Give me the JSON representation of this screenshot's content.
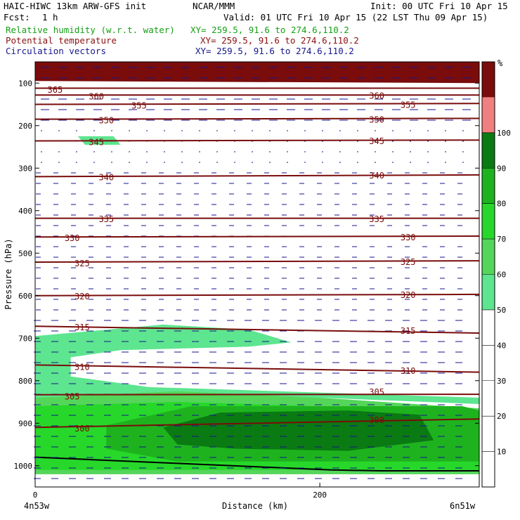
{
  "header": {
    "model": "HAIC-HIWC 13km ARW-GFS init",
    "org": "NCAR/MMM",
    "init": "Init: 00 UTC Fri 10 Apr 15",
    "fcst_label": "Fcst:",
    "fcst_value": "1 h",
    "valid": "Valid: 01 UTC Fri 10 Apr 15 (22 LST Thu 09 Apr 15)",
    "fields": [
      {
        "name": "Relative humidity (w.r.t. water)",
        "xy": "XY= 259.5, 91.6 to 274.6,110.2",
        "color": "#16a016"
      },
      {
        "name": "Potential temperature",
        "xy": "XY= 259.5, 91.6 to 274.6,110.2",
        "color": "#8c1010"
      },
      {
        "name": "Circulation vectors",
        "xy": "XY= 259.5, 91.6 to 274.6,110.2",
        "color": "#16168c"
      }
    ]
  },
  "chart_data": {
    "type": "cross-section",
    "xlabel": "Distance (km)",
    "ylabel": "Pressure (hPa)",
    "x_ticks": [
      0,
      200
    ],
    "y_ticks": [
      100,
      200,
      300,
      400,
      500,
      600,
      700,
      800,
      900,
      1000
    ],
    "x_end_labels": {
      "left": "4n53w",
      "right": "6n51w"
    },
    "xlim": [
      0,
      312
    ],
    "ylim": [
      1050,
      50
    ],
    "colorbar": {
      "unit": "%",
      "levels": [
        10,
        20,
        30,
        40,
        50,
        60,
        70,
        80,
        90,
        100
      ],
      "bins": [
        {
          "from": 50,
          "to": 60,
          "color": "#5de58f"
        },
        {
          "from": 60,
          "to": 70,
          "color": "#54d65a"
        },
        {
          "from": 70,
          "to": 80,
          "color": "#27d82a"
        },
        {
          "from": 80,
          "to": 90,
          "color": "#1eb31e"
        },
        {
          "from": 90,
          "to": 100,
          "color": "#0a7a12"
        },
        {
          "from": 100,
          "to": 110,
          "color": "#f08080"
        },
        {
          "from": 110,
          "to": 120,
          "color": "#7a0c0c"
        }
      ]
    },
    "theta_contours": [
      {
        "value": 365,
        "p": [
          112,
          112
        ]
      },
      {
        "value": 360,
        "p": [
          128,
          128
        ]
      },
      {
        "value": 355,
        "p": [
          150,
          148
        ]
      },
      {
        "value": 350,
        "p": [
          185,
          183
        ]
      },
      {
        "value": 345,
        "p": [
          236,
          234
        ]
      },
      {
        "value": 340,
        "p": [
          320,
          316
        ]
      },
      {
        "value": 335,
        "p": [
          418,
          418
        ]
      },
      {
        "value": 330,
        "p": [
          462,
          460
        ]
      },
      {
        "value": 325,
        "p": [
          521,
          518
        ]
      },
      {
        "value": 320,
        "p": [
          600,
          597
        ]
      },
      {
        "value": 315,
        "p": [
          672,
          688
        ]
      },
      {
        "value": 310,
        "p": [
          763,
          780
        ]
      },
      {
        "value": 305,
        "p": [
          833,
          832
        ]
      },
      {
        "value": 300,
        "p": [
          910,
          890
        ]
      }
    ],
    "theta_labels": [
      {
        "text": "365",
        "x": 14,
        "p": 116
      },
      {
        "text": "360",
        "x": 43,
        "p": 132
      },
      {
        "text": "355",
        "x": 73,
        "p": 153
      },
      {
        "text": "350",
        "x": 50,
        "p": 188
      },
      {
        "text": "345",
        "x": 43,
        "p": 239
      },
      {
        "text": "340",
        "x": 50,
        "p": 322
      },
      {
        "text": "335",
        "x": 50,
        "p": 420
      },
      {
        "text": "330",
        "x": 26,
        "p": 465
      },
      {
        "text": "325",
        "x": 33,
        "p": 524
      },
      {
        "text": "320",
        "x": 33,
        "p": 602
      },
      {
        "text": "315",
        "x": 33,
        "p": 675
      },
      {
        "text": "310",
        "x": 33,
        "p": 768
      },
      {
        "text": "305",
        "x": 26,
        "p": 838
      },
      {
        "text": "300",
        "x": 33,
        "p": 913
      },
      {
        "text": "360",
        "x": 240,
        "p": 130
      },
      {
        "text": "355",
        "x": 262,
        "p": 152
      },
      {
        "text": "350",
        "x": 240,
        "p": 186
      },
      {
        "text": "345",
        "x": 240,
        "p": 237
      },
      {
        "text": "340",
        "x": 240,
        "p": 318
      },
      {
        "text": "335",
        "x": 240,
        "p": 420
      },
      {
        "text": "330",
        "x": 262,
        "p": 463
      },
      {
        "text": "325",
        "x": 262,
        "p": 521
      },
      {
        "text": "320",
        "x": 262,
        "p": 599
      },
      {
        "text": "315",
        "x": 262,
        "p": 683
      },
      {
        "text": "310",
        "x": 262,
        "p": 777
      },
      {
        "text": "305",
        "x": 240,
        "p": 827
      },
      {
        "text": "300",
        "x": 240,
        "p": 893
      }
    ],
    "rh_regions": [
      {
        "level": 110,
        "color": "#7a0c0c",
        "x": [
          0,
          312,
          312,
          0
        ],
        "p": [
          50,
          50,
          100,
          95
        ]
      },
      {
        "level": 50,
        "color": "#5de58f",
        "x": [
          30,
          55,
          60,
          35
        ],
        "p": [
          225,
          225,
          245,
          245
        ]
      },
      {
        "level": 50,
        "color": "#5de58f",
        "x": [
          0,
          90,
          150,
          180,
          150,
          60,
          25,
          25,
          80,
          312,
          312,
          200,
          100,
          0
        ],
        "p": [
          695,
          668,
          680,
          710,
          720,
          728,
          745,
          790,
          815,
          840,
          855,
          840,
          835,
          855
        ]
      },
      {
        "level": 60,
        "color": "#54d65a",
        "x": [
          0,
          100,
          200,
          312,
          312,
          0
        ],
        "p": [
          840,
          825,
          840,
          865,
          1020,
          1020
        ]
      },
      {
        "level": 70,
        "color": "#27d82a",
        "x": [
          0,
          100,
          200,
          312,
          312,
          0
        ],
        "p": [
          860,
          850,
          860,
          880,
          1010,
          1010
        ]
      },
      {
        "level": 80,
        "color": "#1eb31e",
        "x": [
          50,
          110,
          300,
          312,
          312,
          100,
          50
        ],
        "p": [
          905,
          860,
          860,
          870,
          990,
          990,
          960
        ]
      },
      {
        "level": 90,
        "color": "#0a7a12",
        "x": [
          90,
          130,
          220,
          270,
          280,
          220,
          140,
          100
        ],
        "p": [
          910,
          875,
          870,
          880,
          940,
          965,
          960,
          950
        ]
      }
    ],
    "terrain_p": [
      980,
      985,
      990,
      995,
      1000,
      1005,
      1010,
      1012,
      1012,
      1012
    ]
  }
}
